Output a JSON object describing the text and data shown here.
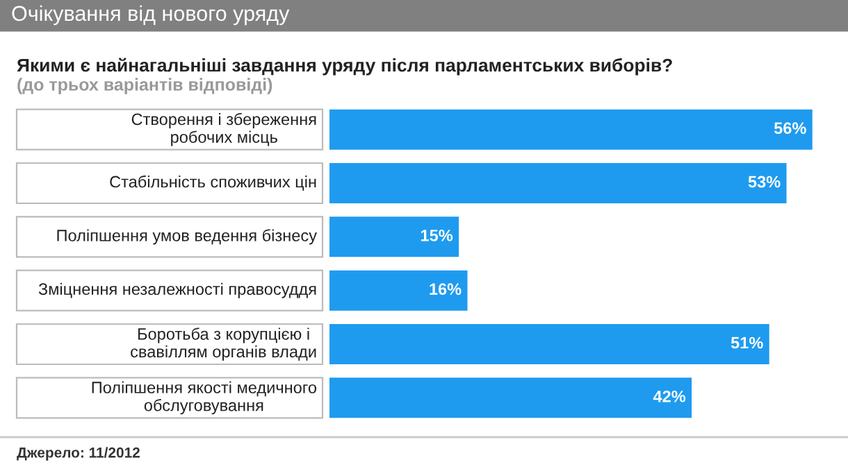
{
  "chart_data": {
    "type": "bar",
    "orientation": "horizontal",
    "title": "Очікування від нового уряду",
    "subtitle": "Якими є найнагальніші завдання уряду після парламентських виборів?",
    "annotations": [
      "(до трьох варіантів відповіді)",
      "Джерело: 11/2012"
    ],
    "categories": [
      "Створення і збереження\nробочих місць",
      "Стабільність споживчих цін",
      "Поліпшення умов ведення бізнесу",
      "Зміцнення незалежності правосуддя",
      "Боротьба з корупцією і\nсвавіллям органів влади",
      "Поліпшення якості медичного\nобслуговування"
    ],
    "values": [
      56,
      53,
      15,
      16,
      51,
      42
    ],
    "color": "#1e9bef",
    "value_labels": [
      "56%",
      "53%",
      "15%",
      "16%",
      "51%",
      "42%"
    ]
  }
}
